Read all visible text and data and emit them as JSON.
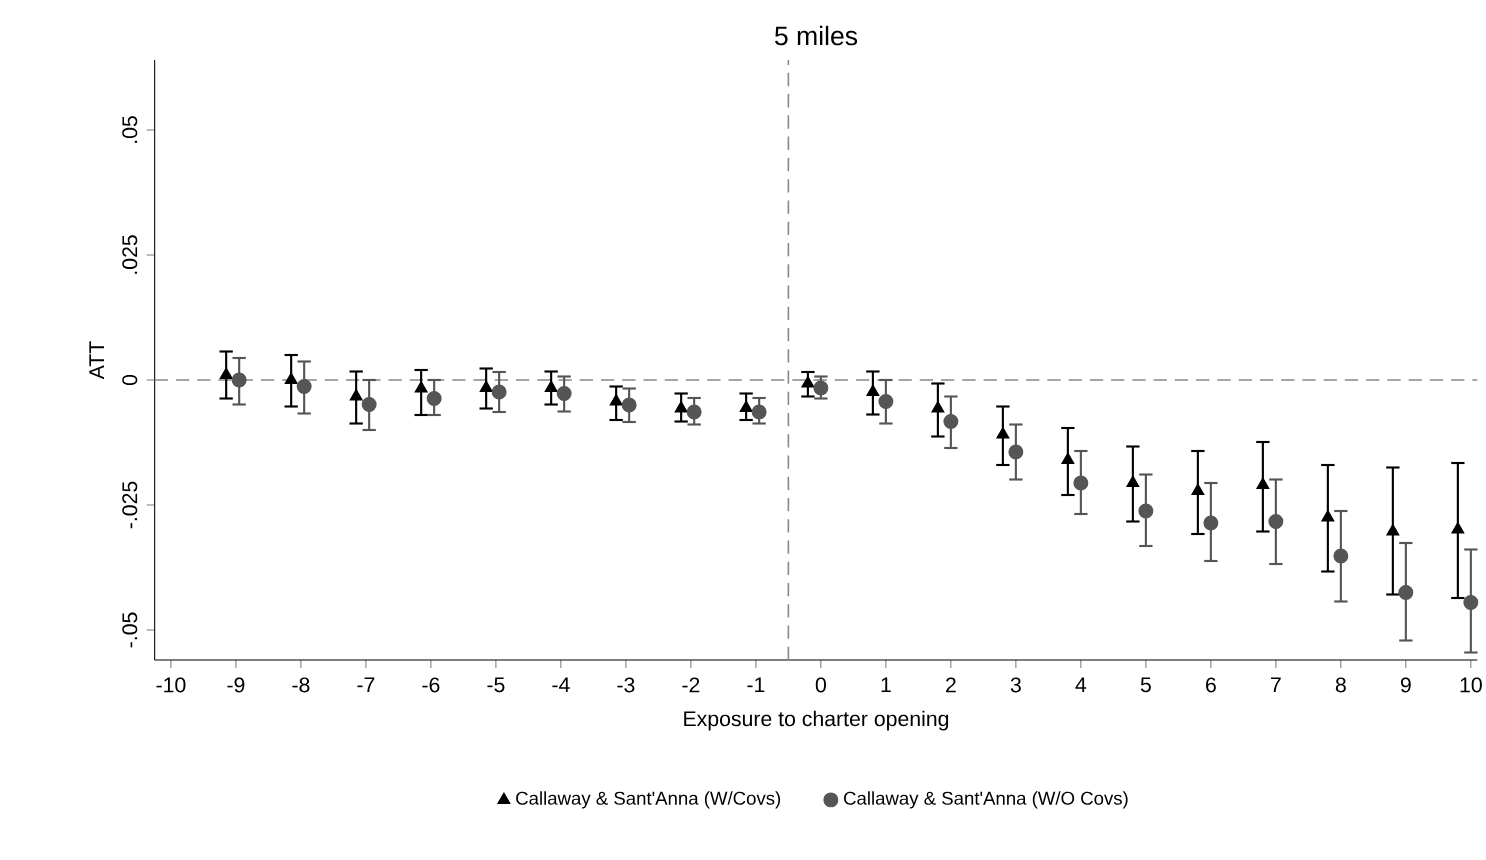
{
  "chart_data": {
    "type": "scatter",
    "title": "5 miles",
    "xlabel": "Exposure to charter opening",
    "ylabel": "ATT",
    "xlim": [
      -10.25,
      10.1
    ],
    "ylim": [
      -0.056,
      0.064
    ],
    "xticks": [
      -10,
      -9,
      -8,
      -7,
      -6,
      -5,
      -4,
      -3,
      -2,
      -1,
      0,
      1,
      2,
      3,
      4,
      5,
      6,
      7,
      8,
      9,
      10
    ],
    "yticks": [
      {
        "value": -0.05,
        "label": "-.05"
      },
      {
        "value": -0.025,
        "label": "-.025"
      },
      0,
      {
        "value": 0.025,
        "label": ".025"
      },
      {
        "value": 0.05,
        "label": ".05"
      }
    ],
    "grid": false,
    "legend": "bottom",
    "ref_lines": [
      {
        "axis": "y",
        "value": 0,
        "color": "#888888",
        "line_style": "dashed"
      },
      {
        "axis": "x",
        "value": -0.5,
        "color": "#888888",
        "line_style": "dashed"
      }
    ],
    "series": [
      {
        "name": "Callaway & Sant'Anna (W/Covs)",
        "color": "#000000",
        "marker": "triangle",
        "x": [
          -9.15,
          -8.15,
          -7.15,
          -6.15,
          -5.15,
          -4.15,
          -3.15,
          -2.15,
          -1.15,
          -0.2,
          0.8,
          1.8,
          2.8,
          3.8,
          4.8,
          5.8,
          6.8,
          7.8,
          8.8,
          9.8
        ],
        "values": [
          0.001,
          0.0,
          -0.0033,
          -0.0017,
          -0.0016,
          -0.0016,
          -0.0043,
          -0.0057,
          -0.0056,
          -0.0007,
          -0.0024,
          -0.0057,
          -0.0109,
          -0.016,
          -0.0206,
          -0.0222,
          -0.021,
          -0.0275,
          -0.0303,
          -0.0299
        ],
        "errors": [
          [
            -0.0037,
            0.0057
          ],
          [
            -0.0053,
            0.005
          ],
          [
            -0.0087,
            0.0017
          ],
          [
            -0.007,
            0.002
          ],
          [
            -0.0057,
            0.0023
          ],
          [
            -0.0049,
            0.0017
          ],
          [
            -0.008,
            -0.0013
          ],
          [
            -0.0083,
            -0.0027
          ],
          [
            -0.008,
            -0.0027
          ],
          [
            -0.0033,
            0.0016
          ],
          [
            -0.0069,
            0.0017
          ],
          [
            -0.0113,
            -0.0007
          ],
          [
            -0.017,
            -0.0053
          ],
          [
            -0.023,
            -0.0096
          ],
          [
            -0.0283,
            -0.0133
          ],
          [
            -0.0308,
            -0.0142
          ],
          [
            -0.0303,
            -0.0124
          ],
          [
            -0.0383,
            -0.017
          ],
          [
            -0.0429,
            -0.0175
          ],
          [
            -0.0436,
            -0.0166
          ]
        ]
      },
      {
        "name": "Callaway & Sant'Anna (W/O Covs)",
        "color": "#555555",
        "marker": "circle",
        "x": [
          -8.95,
          -7.95,
          -6.95,
          -5.95,
          -4.95,
          -3.95,
          -2.95,
          -1.95,
          -0.95,
          0.0,
          1.0,
          2.0,
          3.0,
          4.0,
          5.0,
          6.0,
          7.0,
          8.0,
          9.0,
          10.0
        ],
        "values": [
          0.0,
          -0.0013,
          -0.0049,
          -0.0037,
          -0.0024,
          -0.0027,
          -0.005,
          -0.0064,
          -0.0064,
          -0.0016,
          -0.0043,
          -0.0083,
          -0.0144,
          -0.0206,
          -0.0262,
          -0.0286,
          -0.0283,
          -0.0352,
          -0.0425,
          -0.0445
        ],
        "errors": [
          [
            -0.0049,
            0.0044
          ],
          [
            -0.0067,
            0.0037
          ],
          [
            -0.01,
            0.0
          ],
          [
            -0.007,
            0.0
          ],
          [
            -0.0064,
            0.0016
          ],
          [
            -0.0063,
            0.0007
          ],
          [
            -0.0084,
            -0.0017
          ],
          [
            -0.0089,
            -0.0036
          ],
          [
            -0.0087,
            -0.0036
          ],
          [
            -0.0037,
            0.0007
          ],
          [
            -0.0087,
            0.0
          ],
          [
            -0.0136,
            -0.0033
          ],
          [
            -0.0199,
            -0.0089
          ],
          [
            -0.0268,
            -0.0142
          ],
          [
            -0.0332,
            -0.0189
          ],
          [
            -0.0362,
            -0.0206
          ],
          [
            -0.0368,
            -0.0199
          ],
          [
            -0.0443,
            -0.0262
          ],
          [
            -0.0521,
            -0.0326
          ],
          [
            -0.0545,
            -0.0339
          ]
        ]
      }
    ]
  }
}
